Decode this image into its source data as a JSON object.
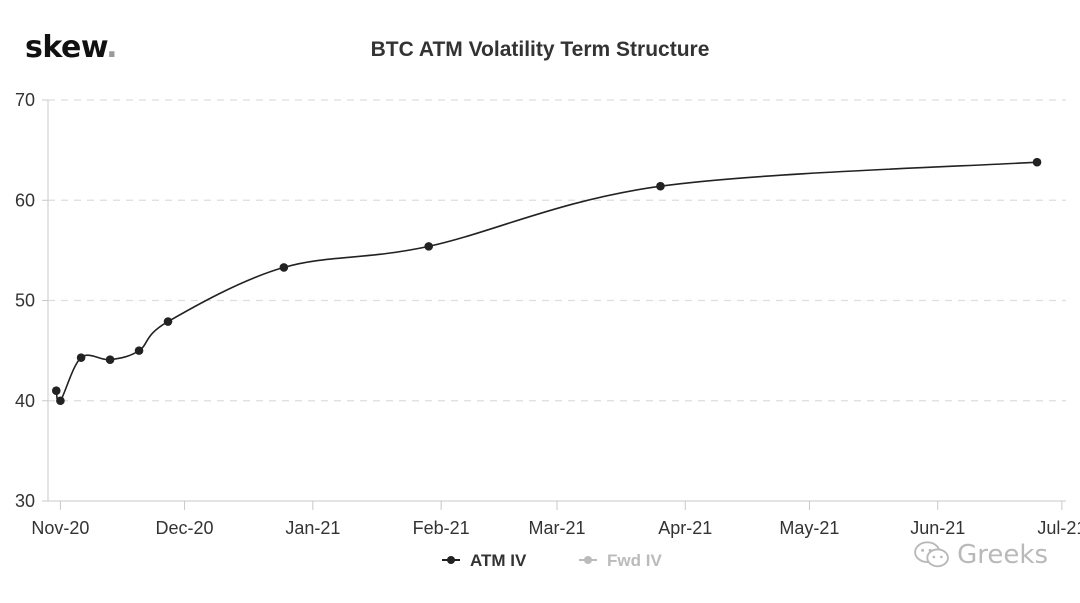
{
  "logo": {
    "text": "skew",
    "dot": "."
  },
  "watermark": {
    "text": "Greeks",
    "icon": "wechat-icon"
  },
  "colors": {
    "line": "#222222",
    "grid": "#dddddd",
    "axis": "#c8c8c8",
    "muted": "#bbbbbb"
  },
  "chart_data": {
    "type": "line",
    "title": "BTC ATM Volatility Term Structure",
    "xlabel": "",
    "ylabel": "",
    "ylim": [
      30,
      70
    ],
    "yticks": [
      30,
      40,
      50,
      60,
      70
    ],
    "xlim": [
      "2020-10-29",
      "2021-07-02"
    ],
    "xticks": [
      {
        "date": "2020-11-01",
        "label": "Nov-20"
      },
      {
        "date": "2020-12-01",
        "label": "Dec-20"
      },
      {
        "date": "2021-01-01",
        "label": "Jan-21"
      },
      {
        "date": "2021-02-01",
        "label": "Feb-21"
      },
      {
        "date": "2021-03-01",
        "label": "Mar-21"
      },
      {
        "date": "2021-04-01",
        "label": "Apr-21"
      },
      {
        "date": "2021-05-01",
        "label": "May-21"
      },
      {
        "date": "2021-06-01",
        "label": "Jun-21"
      },
      {
        "date": "2021-07-01",
        "label": "Jul-21"
      }
    ],
    "grid": "horizontal-dashed",
    "legend_position": "bottom",
    "series": [
      {
        "name": "ATM IV",
        "active": true,
        "points": [
          {
            "x": "2020-10-31",
            "y": 41.0
          },
          {
            "x": "2020-11-01",
            "y": 40.0
          },
          {
            "x": "2020-11-06",
            "y": 44.3
          },
          {
            "x": "2020-11-13",
            "y": 44.1
          },
          {
            "x": "2020-11-20",
            "y": 45.0
          },
          {
            "x": "2020-11-27",
            "y": 47.9
          },
          {
            "x": "2020-12-25",
            "y": 53.3
          },
          {
            "x": "2021-01-29",
            "y": 55.4
          },
          {
            "x": "2021-03-26",
            "y": 61.4
          },
          {
            "x": "2021-06-25",
            "y": 63.8
          }
        ]
      },
      {
        "name": "Fwd IV",
        "active": false,
        "points": []
      }
    ]
  }
}
